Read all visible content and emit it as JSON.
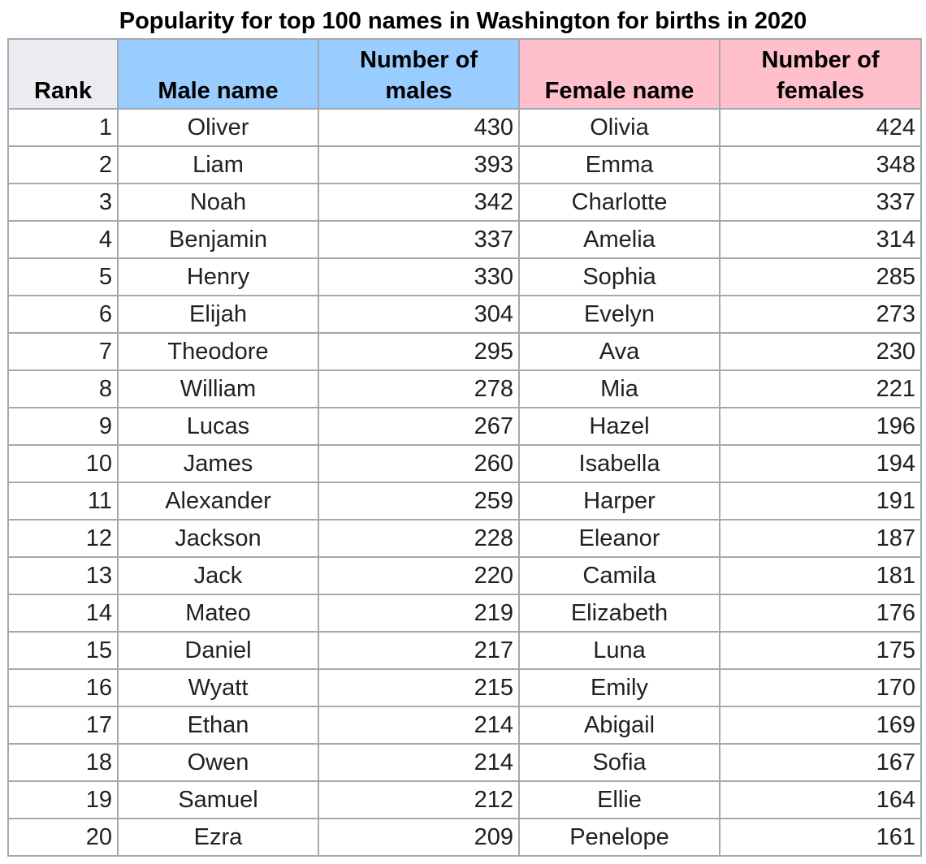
{
  "title": "Popularity for top 100 names in Washington for births in 2020",
  "columns": {
    "rank": "Rank",
    "male_name": "Male name",
    "male_count": "Number of males",
    "female_name": "Female name",
    "female_count": "Number of females"
  },
  "colors": {
    "male_header": "#99ccff",
    "female_header": "#ffc0cb",
    "rank_header": "#eaecf0",
    "border": "#a2a9b1"
  },
  "rows": [
    {
      "rank": "1",
      "male_name": "Oliver",
      "male_count": "430",
      "female_name": "Olivia",
      "female_count": "424"
    },
    {
      "rank": "2",
      "male_name": "Liam",
      "male_count": "393",
      "female_name": "Emma",
      "female_count": "348"
    },
    {
      "rank": "3",
      "male_name": "Noah",
      "male_count": "342",
      "female_name": "Charlotte",
      "female_count": "337"
    },
    {
      "rank": "4",
      "male_name": "Benjamin",
      "male_count": "337",
      "female_name": "Amelia",
      "female_count": "314"
    },
    {
      "rank": "5",
      "male_name": "Henry",
      "male_count": "330",
      "female_name": "Sophia",
      "female_count": "285"
    },
    {
      "rank": "6",
      "male_name": "Elijah",
      "male_count": "304",
      "female_name": "Evelyn",
      "female_count": "273"
    },
    {
      "rank": "7",
      "male_name": "Theodore",
      "male_count": "295",
      "female_name": "Ava",
      "female_count": "230"
    },
    {
      "rank": "8",
      "male_name": "William",
      "male_count": "278",
      "female_name": "Mia",
      "female_count": "221"
    },
    {
      "rank": "9",
      "male_name": "Lucas",
      "male_count": "267",
      "female_name": "Hazel",
      "female_count": "196"
    },
    {
      "rank": "10",
      "male_name": "James",
      "male_count": "260",
      "female_name": "Isabella",
      "female_count": "194"
    },
    {
      "rank": "11",
      "male_name": "Alexander",
      "male_count": "259",
      "female_name": "Harper",
      "female_count": "191"
    },
    {
      "rank": "12",
      "male_name": "Jackson",
      "male_count": "228",
      "female_name": "Eleanor",
      "female_count": "187"
    },
    {
      "rank": "13",
      "male_name": "Jack",
      "male_count": "220",
      "female_name": "Camila",
      "female_count": "181"
    },
    {
      "rank": "14",
      "male_name": "Mateo",
      "male_count": "219",
      "female_name": "Elizabeth",
      "female_count": "176"
    },
    {
      "rank": "15",
      "male_name": "Daniel",
      "male_count": "217",
      "female_name": "Luna",
      "female_count": "175"
    },
    {
      "rank": "16",
      "male_name": "Wyatt",
      "male_count": "215",
      "female_name": "Emily",
      "female_count": "170"
    },
    {
      "rank": "17",
      "male_name": "Ethan",
      "male_count": "214",
      "female_name": "Abigail",
      "female_count": "169"
    },
    {
      "rank": "18",
      "male_name": "Owen",
      "male_count": "214",
      "female_name": "Sofia",
      "female_count": "167"
    },
    {
      "rank": "19",
      "male_name": "Samuel",
      "male_count": "212",
      "female_name": "Ellie",
      "female_count": "164"
    },
    {
      "rank": "20",
      "male_name": "Ezra",
      "male_count": "209",
      "female_name": "Penelope",
      "female_count": "161"
    }
  ]
}
